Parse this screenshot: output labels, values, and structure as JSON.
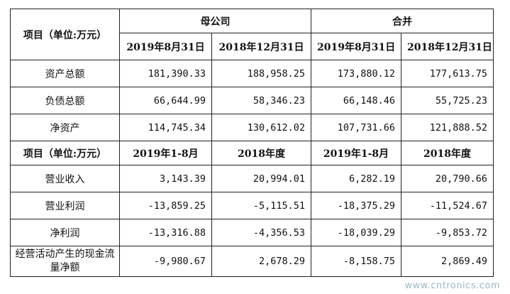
{
  "table": {
    "header": {
      "label": "项目（单位:万元）",
      "group_parent": "母公司",
      "group_consolidated": "合并"
    },
    "dates_1": [
      "2019年8月31日",
      "2018年12月31日",
      "2019年8月31日",
      "2018年12月31日"
    ],
    "rows_1": [
      {
        "label": "资产总额",
        "values": [
          "181,390.33",
          "188,958.25",
          "173,880.12",
          "177,613.75"
        ]
      },
      {
        "label": "负债总额",
        "values": [
          "66,644.99",
          "58,346.23",
          "66,148.46",
          "55,725.23"
        ]
      },
      {
        "label": "净资产",
        "values": [
          "114,745.34",
          "130,612.02",
          "107,731.66",
          "121,888.52"
        ]
      }
    ],
    "header_2": {
      "label": "项目（单位:万元）",
      "periods": [
        "2019年1-8月",
        "2018年度",
        "2019年1-8月",
        "2018年度"
      ]
    },
    "rows_2": [
      {
        "label": "营业收入",
        "values": [
          "3,143.39",
          "20,994.01",
          "6,282.19",
          "20,790.66"
        ]
      },
      {
        "label": "营业利润",
        "values": [
          "-13,859.25",
          "-5,115.51",
          "-18,375.29",
          "-11,524.67"
        ]
      },
      {
        "label": "净利润",
        "values": [
          "-13,316.88",
          "-4,356.53",
          "-18,039.29",
          "-9,853.72"
        ]
      },
      {
        "label": "经营活动产生的现金流量净额",
        "values": [
          "-9,980.67",
          "2,678.29",
          "-8,158.75",
          "2,869.49"
        ]
      }
    ]
  },
  "watermark": "www.cntronics.com"
}
